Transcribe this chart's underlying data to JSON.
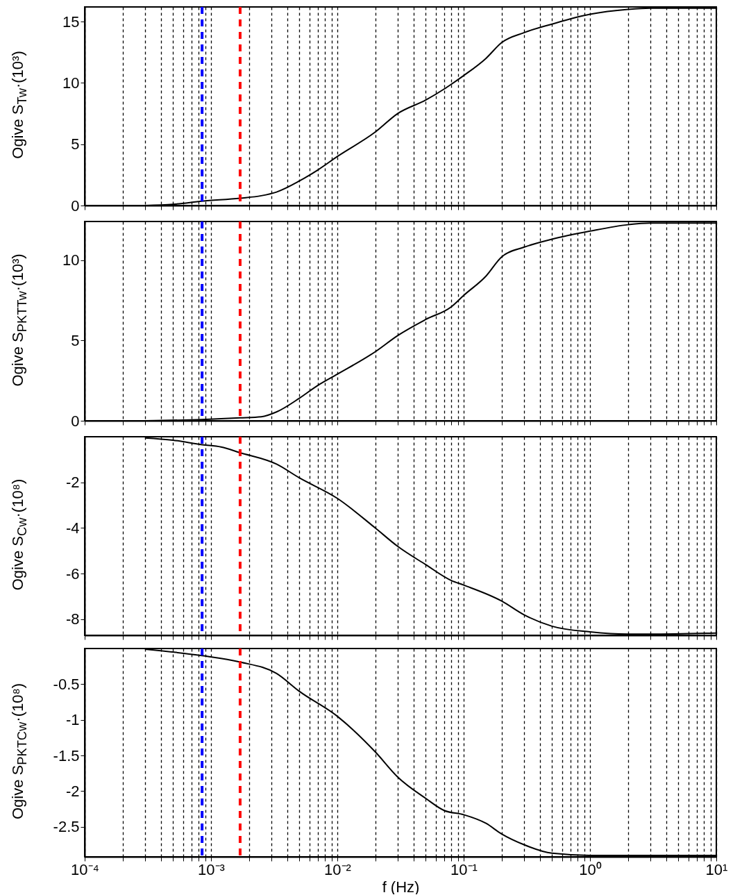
{
  "chart_data": [
    {
      "type": "line",
      "ylabel": "Ogive S$_{Tw}$·(10³)",
      "log": "x",
      "grid": "x",
      "tick_labels": "y",
      "xlim": [
        0.0001,
        10
      ],
      "ylim": [
        0,
        16.2
      ],
      "yticks": [
        0,
        5,
        10,
        15
      ],
      "xticks": [
        {
          "value": 0.0001,
          "label": null
        },
        {
          "value": 0.0002,
          "label": null
        },
        {
          "value": 0.0003,
          "label": null
        },
        {
          "value": 0.0004,
          "label": null
        },
        {
          "value": 0.0005,
          "label": null
        },
        {
          "value": 0.0006,
          "label": null
        },
        {
          "value": 0.0007,
          "label": null
        },
        {
          "value": 0.0008,
          "label": null
        },
        {
          "value": 0.0009,
          "label": null
        },
        {
          "value": 0.001,
          "label": null
        },
        {
          "value": 0.002,
          "label": null
        },
        {
          "value": 0.003,
          "label": null
        },
        {
          "value": 0.004,
          "label": null
        },
        {
          "value": 0.005,
          "label": null
        },
        {
          "value": 0.006,
          "label": null
        },
        {
          "value": 0.007,
          "label": null
        },
        {
          "value": 0.008,
          "label": null
        },
        {
          "value": 0.009,
          "label": null
        },
        {
          "value": 0.01,
          "label": null
        },
        {
          "value": 0.02,
          "label": null
        },
        {
          "value": 0.03,
          "label": null
        },
        {
          "value": 0.04,
          "label": null
        },
        {
          "value": 0.05,
          "label": null
        },
        {
          "value": 0.06,
          "label": null
        },
        {
          "value": 0.07,
          "label": null
        },
        {
          "value": 0.08,
          "label": null
        },
        {
          "value": 0.09,
          "label": null
        },
        {
          "value": 0.1,
          "label": null
        },
        {
          "value": 0.2,
          "label": null
        },
        {
          "value": 0.3,
          "label": null
        },
        {
          "value": 0.4,
          "label": null
        },
        {
          "value": 0.5,
          "label": null
        },
        {
          "value": 0.6,
          "label": null
        },
        {
          "value": 0.7,
          "label": null
        },
        {
          "value": 0.8,
          "label": null
        },
        {
          "value": 0.9,
          "label": null
        },
        {
          "value": 1,
          "label": null
        },
        {
          "value": 2,
          "label": null
        },
        {
          "value": 3,
          "label": null
        },
        {
          "value": 4,
          "label": null
        },
        {
          "value": 5,
          "label": null
        },
        {
          "value": 6,
          "label": null
        },
        {
          "value": 7,
          "label": null
        },
        {
          "value": 8,
          "label": null
        },
        {
          "value": 9,
          "label": null
        },
        {
          "value": 10,
          "label": null
        }
      ],
      "x": [
        0.0003,
        0.0005,
        0.00085,
        0.0017,
        0.0025,
        0.0033,
        0.005,
        0.007,
        0.01,
        0.02,
        0.03,
        0.05,
        0.07,
        0.08,
        0.1,
        0.15,
        0.2,
        0.3,
        0.5,
        1,
        2,
        3,
        10
      ],
      "series": [
        {
          "color": "#000000",
          "values": [
            0,
            0.1,
            0.35,
            0.6,
            0.8,
            1.1,
            2.0,
            2.9,
            4.0,
            6.0,
            7.5,
            8.6,
            9.5,
            9.9,
            10.6,
            12.0,
            13.3,
            14.1,
            14.8,
            15.6,
            16.0,
            16.1,
            16.1
          ]
        }
      ],
      "ref_lines": [
        {
          "axis": "x",
          "value": 0.00085,
          "color": "#0000ff",
          "line_style": "dashed"
        },
        {
          "axis": "x",
          "value": 0.0017,
          "color": "#ff0000",
          "line_style": "dashed"
        }
      ]
    },
    {
      "type": "line",
      "ylabel": "Ogive S$_{PKTTw}$·(10³)",
      "log": "x",
      "grid": "x",
      "tick_labels": "y",
      "xlim": [
        0.0001,
        10
      ],
      "ylim": [
        0,
        12.4
      ],
      "yticks": [
        0,
        5,
        10
      ],
      "xticks": [
        {
          "value": 0.0001,
          "label": null
        },
        {
          "value": 0.0002,
          "label": null
        },
        {
          "value": 0.0003,
          "label": null
        },
        {
          "value": 0.0004,
          "label": null
        },
        {
          "value": 0.0005,
          "label": null
        },
        {
          "value": 0.0006,
          "label": null
        },
        {
          "value": 0.0007,
          "label": null
        },
        {
          "value": 0.0008,
          "label": null
        },
        {
          "value": 0.0009,
          "label": null
        },
        {
          "value": 0.001,
          "label": null
        },
        {
          "value": 0.002,
          "label": null
        },
        {
          "value": 0.003,
          "label": null
        },
        {
          "value": 0.004,
          "label": null
        },
        {
          "value": 0.005,
          "label": null
        },
        {
          "value": 0.006,
          "label": null
        },
        {
          "value": 0.007,
          "label": null
        },
        {
          "value": 0.008,
          "label": null
        },
        {
          "value": 0.009,
          "label": null
        },
        {
          "value": 0.01,
          "label": null
        },
        {
          "value": 0.02,
          "label": null
        },
        {
          "value": 0.03,
          "label": null
        },
        {
          "value": 0.04,
          "label": null
        },
        {
          "value": 0.05,
          "label": null
        },
        {
          "value": 0.06,
          "label": null
        },
        {
          "value": 0.07,
          "label": null
        },
        {
          "value": 0.08,
          "label": null
        },
        {
          "value": 0.09,
          "label": null
        },
        {
          "value": 0.1,
          "label": null
        },
        {
          "value": 0.2,
          "label": null
        },
        {
          "value": 0.3,
          "label": null
        },
        {
          "value": 0.4,
          "label": null
        },
        {
          "value": 0.5,
          "label": null
        },
        {
          "value": 0.6,
          "label": null
        },
        {
          "value": 0.7,
          "label": null
        },
        {
          "value": 0.8,
          "label": null
        },
        {
          "value": 0.9,
          "label": null
        },
        {
          "value": 1,
          "label": null
        },
        {
          "value": 2,
          "label": null
        },
        {
          "value": 3,
          "label": null
        },
        {
          "value": 4,
          "label": null
        },
        {
          "value": 5,
          "label": null
        },
        {
          "value": 6,
          "label": null
        },
        {
          "value": 7,
          "label": null
        },
        {
          "value": 8,
          "label": null
        },
        {
          "value": 9,
          "label": null
        },
        {
          "value": 10,
          "label": null
        }
      ],
      "x": [
        0.0003,
        0.00085,
        0.0017,
        0.0025,
        0.0033,
        0.005,
        0.007,
        0.01,
        0.02,
        0.03,
        0.05,
        0.08,
        0.1,
        0.15,
        0.2,
        0.3,
        0.5,
        1,
        2,
        3,
        10
      ],
      "series": [
        {
          "color": "#000000",
          "values": [
            0,
            0.08,
            0.18,
            0.25,
            0.55,
            1.4,
            2.2,
            2.9,
            4.3,
            5.3,
            6.3,
            7.1,
            7.8,
            9.0,
            10.2,
            10.8,
            11.3,
            11.8,
            12.2,
            12.3,
            12.3
          ]
        }
      ],
      "ref_lines": [
        {
          "axis": "x",
          "value": 0.00085,
          "color": "#0000ff",
          "line_style": "dashed"
        },
        {
          "axis": "x",
          "value": 0.0017,
          "color": "#ff0000",
          "line_style": "dashed"
        }
      ]
    },
    {
      "type": "line",
      "ylabel": "Ogive S$_{Cw}$·(10⁸)",
      "log": "x",
      "grid": "x",
      "tick_labels": "y",
      "xlim": [
        0.0001,
        10
      ],
      "ylim": [
        -8.7,
        0
      ],
      "yticks": [
        -8,
        -6,
        -4,
        -2
      ],
      "xticks": [
        {
          "value": 0.0001,
          "label": null
        },
        {
          "value": 0.0002,
          "label": null
        },
        {
          "value": 0.0003,
          "label": null
        },
        {
          "value": 0.0004,
          "label": null
        },
        {
          "value": 0.0005,
          "label": null
        },
        {
          "value": 0.0006,
          "label": null
        },
        {
          "value": 0.0007,
          "label": null
        },
        {
          "value": 0.0008,
          "label": null
        },
        {
          "value": 0.0009,
          "label": null
        },
        {
          "value": 0.001,
          "label": null
        },
        {
          "value": 0.002,
          "label": null
        },
        {
          "value": 0.003,
          "label": null
        },
        {
          "value": 0.004,
          "label": null
        },
        {
          "value": 0.005,
          "label": null
        },
        {
          "value": 0.006,
          "label": null
        },
        {
          "value": 0.007,
          "label": null
        },
        {
          "value": 0.008,
          "label": null
        },
        {
          "value": 0.009,
          "label": null
        },
        {
          "value": 0.01,
          "label": null
        },
        {
          "value": 0.02,
          "label": null
        },
        {
          "value": 0.03,
          "label": null
        },
        {
          "value": 0.04,
          "label": null
        },
        {
          "value": 0.05,
          "label": null
        },
        {
          "value": 0.06,
          "label": null
        },
        {
          "value": 0.07,
          "label": null
        },
        {
          "value": 0.08,
          "label": null
        },
        {
          "value": 0.09,
          "label": null
        },
        {
          "value": 0.1,
          "label": null
        },
        {
          "value": 0.2,
          "label": null
        },
        {
          "value": 0.3,
          "label": null
        },
        {
          "value": 0.4,
          "label": null
        },
        {
          "value": 0.5,
          "label": null
        },
        {
          "value": 0.6,
          "label": null
        },
        {
          "value": 0.7,
          "label": null
        },
        {
          "value": 0.8,
          "label": null
        },
        {
          "value": 0.9,
          "label": null
        },
        {
          "value": 1,
          "label": null
        },
        {
          "value": 2,
          "label": null
        },
        {
          "value": 3,
          "label": null
        },
        {
          "value": 4,
          "label": null
        },
        {
          "value": 5,
          "label": null
        },
        {
          "value": 6,
          "label": null
        },
        {
          "value": 7,
          "label": null
        },
        {
          "value": 8,
          "label": null
        },
        {
          "value": 9,
          "label": null
        },
        {
          "value": 10,
          "label": null
        }
      ],
      "x": [
        0.0003,
        0.0005,
        0.00085,
        0.0012,
        0.0017,
        0.0033,
        0.005,
        0.01,
        0.02,
        0.03,
        0.05,
        0.08,
        0.1,
        0.2,
        0.3,
        0.5,
        1,
        2,
        3,
        10
      ],
      "series": [
        {
          "color": "#000000",
          "values": [
            -0.05,
            -0.15,
            -0.35,
            -0.45,
            -0.7,
            -1.2,
            -1.8,
            -2.7,
            -4.0,
            -4.8,
            -5.6,
            -6.3,
            -6.5,
            -7.2,
            -7.8,
            -8.3,
            -8.55,
            -8.65,
            -8.65,
            -8.6
          ]
        }
      ],
      "ref_lines": [
        {
          "axis": "x",
          "value": 0.00085,
          "color": "#0000ff",
          "line_style": "dashed"
        },
        {
          "axis": "x",
          "value": 0.0017,
          "color": "#ff0000",
          "line_style": "dashed"
        }
      ]
    },
    {
      "type": "line",
      "xlabel": "f (Hz)",
      "ylabel": "Ogive S$_{PKTCw}$·(10⁸)",
      "log": "x",
      "grid": "x",
      "xlim": [
        0.0001,
        10
      ],
      "ylim": [
        -2.92,
        0
      ],
      "yticks": [
        -2.5,
        -2,
        -1.5,
        -1,
        -0.5
      ],
      "xticks": [
        {
          "value": 0.0001,
          "label": "10⁻⁴"
        },
        {
          "value": 0.0002,
          "label": null
        },
        {
          "value": 0.0003,
          "label": null
        },
        {
          "value": 0.0004,
          "label": null
        },
        {
          "value": 0.0005,
          "label": null
        },
        {
          "value": 0.0006,
          "label": null
        },
        {
          "value": 0.0007,
          "label": null
        },
        {
          "value": 0.0008,
          "label": null
        },
        {
          "value": 0.0009,
          "label": null
        },
        {
          "value": 0.001,
          "label": "10⁻³"
        },
        {
          "value": 0.002,
          "label": null
        },
        {
          "value": 0.003,
          "label": null
        },
        {
          "value": 0.004,
          "label": null
        },
        {
          "value": 0.005,
          "label": null
        },
        {
          "value": 0.006,
          "label": null
        },
        {
          "value": 0.007,
          "label": null
        },
        {
          "value": 0.008,
          "label": null
        },
        {
          "value": 0.009,
          "label": null
        },
        {
          "value": 0.01,
          "label": "10⁻²"
        },
        {
          "value": 0.02,
          "label": null
        },
        {
          "value": 0.03,
          "label": null
        },
        {
          "value": 0.04,
          "label": null
        },
        {
          "value": 0.05,
          "label": null
        },
        {
          "value": 0.06,
          "label": null
        },
        {
          "value": 0.07,
          "label": null
        },
        {
          "value": 0.08,
          "label": null
        },
        {
          "value": 0.09,
          "label": null
        },
        {
          "value": 0.1,
          "label": "10⁻¹"
        },
        {
          "value": 0.2,
          "label": null
        },
        {
          "value": 0.3,
          "label": null
        },
        {
          "value": 0.4,
          "label": null
        },
        {
          "value": 0.5,
          "label": null
        },
        {
          "value": 0.6,
          "label": null
        },
        {
          "value": 0.7,
          "label": null
        },
        {
          "value": 0.8,
          "label": null
        },
        {
          "value": 0.9,
          "label": null
        },
        {
          "value": 1,
          "label": "10⁰"
        },
        {
          "value": 2,
          "label": null
        },
        {
          "value": 3,
          "label": null
        },
        {
          "value": 4,
          "label": null
        },
        {
          "value": 5,
          "label": null
        },
        {
          "value": 6,
          "label": null
        },
        {
          "value": 7,
          "label": null
        },
        {
          "value": 8,
          "label": null
        },
        {
          "value": 9,
          "label": null
        },
        {
          "value": 10,
          "label": "10¹"
        }
      ],
      "x": [
        0.0003,
        0.00085,
        0.0017,
        0.0033,
        0.005,
        0.01,
        0.02,
        0.03,
        0.05,
        0.07,
        0.1,
        0.15,
        0.2,
        0.3,
        0.5,
        1,
        10
      ],
      "series": [
        {
          "color": "#000000",
          "values": [
            -0.01,
            -0.1,
            -0.19,
            -0.35,
            -0.6,
            -0.95,
            -1.45,
            -1.8,
            -2.1,
            -2.27,
            -2.33,
            -2.45,
            -2.6,
            -2.75,
            -2.87,
            -2.9,
            -2.9
          ]
        }
      ],
      "ref_lines": [
        {
          "axis": "x",
          "value": 0.00085,
          "color": "#0000ff",
          "line_style": "dashed"
        },
        {
          "axis": "x",
          "value": 0.0017,
          "color": "#ff0000",
          "line_style": "dashed"
        }
      ]
    }
  ]
}
